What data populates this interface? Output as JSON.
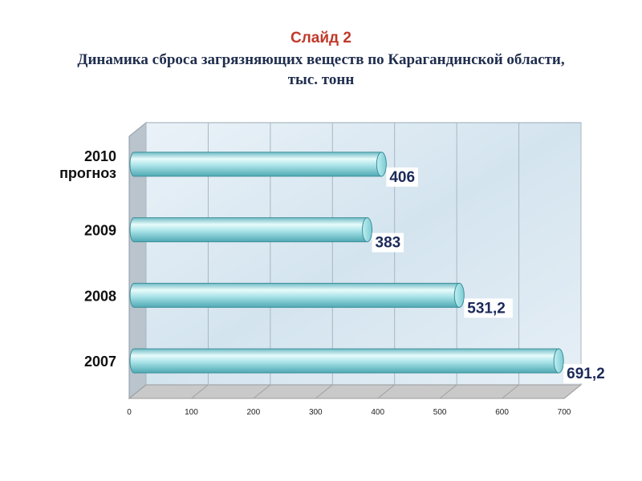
{
  "slide": {
    "label": "Слайд 2",
    "heading": "Динамика сброса загрязняющих веществ по Карагандинской области, тыс. тонн"
  },
  "colors": {
    "title_red": "#c0392b",
    "heading_navy": "#1f2d4d",
    "bar_light": "#e8fbfb",
    "bar_mid": "#9fdfe4",
    "bar_dark": "#4fa9b4",
    "value_text": "#1c2a5a",
    "wall": "#dce9f3",
    "floor": "#c9c9c9"
  },
  "chart_data": {
    "type": "bar",
    "orientation": "horizontal",
    "style": "3d-cylinder",
    "categories": [
      "2007",
      "2008",
      "2009",
      "2010 прогноз"
    ],
    "values": [
      691.2,
      531.2,
      383,
      406
    ],
    "value_labels": [
      "691,2",
      "531,2",
      "383",
      "406"
    ],
    "xlim": [
      0,
      700
    ],
    "xticks": [
      "0",
      "100",
      "200",
      "300",
      "400",
      "500",
      "600",
      "700"
    ],
    "grid": true,
    "legend": "none"
  }
}
